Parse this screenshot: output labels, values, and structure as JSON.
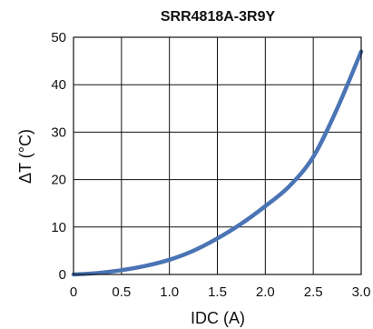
{
  "chart_data": {
    "type": "line",
    "title": "SRR4818A-3R9Y",
    "xlabel": "IDC (A)",
    "ylabel": "ΔT (°C)",
    "xlim": [
      0,
      3.0
    ],
    "ylim": [
      0,
      50
    ],
    "x_ticks": [
      "0",
      "0.5",
      "1.0",
      "1.5",
      "2.0",
      "2.5",
      "3.0"
    ],
    "x_tick_values": [
      0,
      0.5,
      1.0,
      1.5,
      2.0,
      2.5,
      3.0
    ],
    "y_ticks": [
      "0",
      "10",
      "20",
      "30",
      "40",
      "50"
    ],
    "y_tick_values": [
      0,
      10,
      20,
      30,
      40,
      50
    ],
    "grid": true,
    "series": [
      {
        "color": "#4a74b4",
        "x": [
          0,
          0.25,
          0.5,
          0.75,
          1.0,
          1.25,
          1.5,
          1.75,
          2.0,
          2.25,
          2.5,
          2.75,
          3.0
        ],
        "y": [
          0,
          0.3,
          0.9,
          1.8,
          3.1,
          5.0,
          7.6,
          10.7,
          14.4,
          18.6,
          24.8,
          35.0,
          47.0
        ]
      }
    ]
  }
}
